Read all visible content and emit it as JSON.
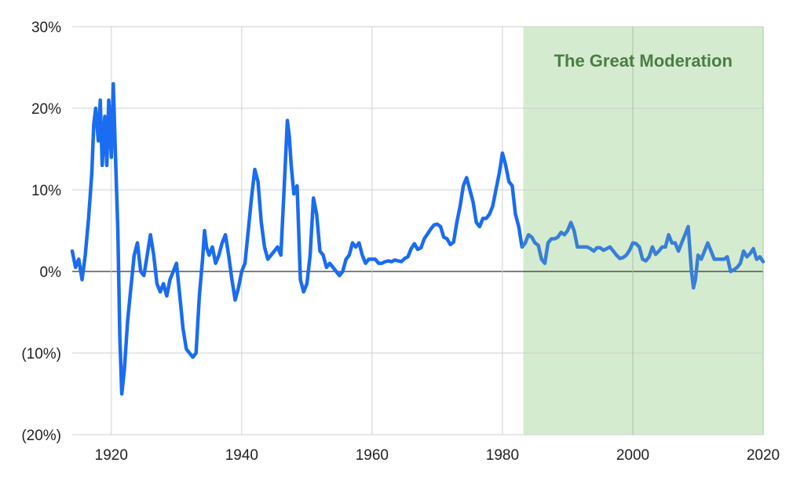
{
  "chart_data": {
    "type": "line",
    "title": "",
    "xlabel": "",
    "ylabel": "",
    "xlim": [
      1914,
      2020
    ],
    "ylim": [
      -20,
      30
    ],
    "y_ticks": [
      {
        "value": 30,
        "label": "30%"
      },
      {
        "value": 20,
        "label": "20%"
      },
      {
        "value": 10,
        "label": "10%"
      },
      {
        "value": 0,
        "label": "0%"
      },
      {
        "value": -10,
        "label": "(10%)"
      },
      {
        "value": -20,
        "label": "(20%)"
      }
    ],
    "x_ticks": [
      {
        "value": 1920,
        "label": "1920"
      },
      {
        "value": 1940,
        "label": "1940"
      },
      {
        "value": 1960,
        "label": "1960"
      },
      {
        "value": 1980,
        "label": "1980"
      },
      {
        "value": 2000,
        "label": "2000"
      },
      {
        "value": 2020,
        "label": "2020"
      }
    ],
    "grid": true,
    "shaded_region": {
      "label": "The Great Moderation",
      "x_start": 1983.2,
      "x_end": 2020
    },
    "series": [
      {
        "color": "#1a6cf0",
        "color_in_region": "#3a7fd6",
        "points": [
          [
            1914.0,
            2.5
          ],
          [
            1914.5,
            0.5
          ],
          [
            1915.0,
            1.5
          ],
          [
            1915.5,
            -1.0
          ],
          [
            1916.0,
            2.0
          ],
          [
            1916.5,
            6.5
          ],
          [
            1917.0,
            12.0
          ],
          [
            1917.3,
            18.0
          ],
          [
            1917.6,
            20.0
          ],
          [
            1918.0,
            16.0
          ],
          [
            1918.3,
            21.0
          ],
          [
            1918.6,
            13.0
          ],
          [
            1919.0,
            19.0
          ],
          [
            1919.3,
            13.0
          ],
          [
            1919.6,
            21.0
          ],
          [
            1920.0,
            14.0
          ],
          [
            1920.3,
            23.0
          ],
          [
            1920.6,
            15.0
          ],
          [
            1921.0,
            5.0
          ],
          [
            1921.3,
            -8.0
          ],
          [
            1921.6,
            -15.0
          ],
          [
            1922.0,
            -12.0
          ],
          [
            1922.5,
            -6.0
          ],
          [
            1923.0,
            -2.0
          ],
          [
            1923.5,
            2.0
          ],
          [
            1924.0,
            3.5
          ],
          [
            1924.5,
            0.0
          ],
          [
            1925.0,
            -0.5
          ],
          [
            1925.5,
            2.0
          ],
          [
            1926.0,
            4.5
          ],
          [
            1926.5,
            2.0
          ],
          [
            1927.0,
            -1.5
          ],
          [
            1927.5,
            -2.5
          ],
          [
            1928.0,
            -1.5
          ],
          [
            1928.5,
            -3.0
          ],
          [
            1929.0,
            -1.0
          ],
          [
            1929.5,
            0.0
          ],
          [
            1930.0,
            1.0
          ],
          [
            1930.5,
            -3.0
          ],
          [
            1931.0,
            -7.0
          ],
          [
            1931.5,
            -9.5
          ],
          [
            1932.0,
            -10.0
          ],
          [
            1932.5,
            -10.5
          ],
          [
            1933.0,
            -10.0
          ],
          [
            1933.5,
            -3.0
          ],
          [
            1934.0,
            1.5
          ],
          [
            1934.3,
            5.0
          ],
          [
            1934.6,
            3.0
          ],
          [
            1935.0,
            2.0
          ],
          [
            1935.5,
            3.0
          ],
          [
            1936.0,
            1.0
          ],
          [
            1936.5,
            2.0
          ],
          [
            1937.0,
            3.5
          ],
          [
            1937.5,
            4.5
          ],
          [
            1938.0,
            2.0
          ],
          [
            1938.5,
            -1.0
          ],
          [
            1939.0,
            -3.5
          ],
          [
            1939.5,
            -2.0
          ],
          [
            1940.0,
            0.0
          ],
          [
            1940.5,
            1.0
          ],
          [
            1941.0,
            5.0
          ],
          [
            1941.5,
            9.0
          ],
          [
            1942.0,
            12.5
          ],
          [
            1942.5,
            11.0
          ],
          [
            1943.0,
            6.0
          ],
          [
            1943.5,
            3.0
          ],
          [
            1944.0,
            1.5
          ],
          [
            1944.5,
            2.0
          ],
          [
            1945.0,
            2.5
          ],
          [
            1945.5,
            3.0
          ],
          [
            1946.0,
            2.0
          ],
          [
            1946.5,
            10.0
          ],
          [
            1947.0,
            18.5
          ],
          [
            1947.3,
            16.5
          ],
          [
            1947.6,
            13.0
          ],
          [
            1948.0,
            9.5
          ],
          [
            1948.5,
            10.5
          ],
          [
            1949.0,
            -1.0
          ],
          [
            1949.5,
            -2.5
          ],
          [
            1950.0,
            -1.5
          ],
          [
            1950.5,
            2.0
          ],
          [
            1951.0,
            9.0
          ],
          [
            1951.5,
            7.0
          ],
          [
            1952.0,
            2.5
          ],
          [
            1952.5,
            2.0
          ],
          [
            1953.0,
            0.5
          ],
          [
            1953.5,
            1.0
          ],
          [
            1954.0,
            0.5
          ],
          [
            1954.5,
            0.0
          ],
          [
            1955.0,
            -0.5
          ],
          [
            1955.5,
            0.0
          ],
          [
            1956.0,
            1.5
          ],
          [
            1956.5,
            2.0
          ],
          [
            1957.0,
            3.5
          ],
          [
            1957.5,
            3.0
          ],
          [
            1958.0,
            3.5
          ],
          [
            1958.5,
            2.0
          ],
          [
            1959.0,
            1.0
          ],
          [
            1959.5,
            1.5
          ],
          [
            1960.0,
            1.5
          ],
          [
            1960.5,
            1.5
          ],
          [
            1961.0,
            1.0
          ],
          [
            1961.5,
            1.0
          ],
          [
            1962.0,
            1.2
          ],
          [
            1962.5,
            1.3
          ],
          [
            1963.0,
            1.2
          ],
          [
            1963.5,
            1.4
          ],
          [
            1964.0,
            1.3
          ],
          [
            1964.5,
            1.2
          ],
          [
            1965.0,
            1.6
          ],
          [
            1965.5,
            1.8
          ],
          [
            1966.0,
            2.8
          ],
          [
            1966.5,
            3.4
          ],
          [
            1967.0,
            2.7
          ],
          [
            1967.5,
            2.9
          ],
          [
            1968.0,
            4.0
          ],
          [
            1968.5,
            4.6
          ],
          [
            1969.0,
            5.2
          ],
          [
            1969.5,
            5.7
          ],
          [
            1970.0,
            5.8
          ],
          [
            1970.5,
            5.5
          ],
          [
            1971.0,
            4.2
          ],
          [
            1971.5,
            4.0
          ],
          [
            1972.0,
            3.3
          ],
          [
            1972.5,
            3.6
          ],
          [
            1973.0,
            6.0
          ],
          [
            1973.5,
            8.0
          ],
          [
            1974.0,
            10.5
          ],
          [
            1974.5,
            11.5
          ],
          [
            1975.0,
            10.0
          ],
          [
            1975.5,
            8.5
          ],
          [
            1976.0,
            6.0
          ],
          [
            1976.5,
            5.5
          ],
          [
            1977.0,
            6.5
          ],
          [
            1977.5,
            6.5
          ],
          [
            1978.0,
            7.0
          ],
          [
            1978.5,
            8.0
          ],
          [
            1979.0,
            10.0
          ],
          [
            1979.5,
            12.0
          ],
          [
            1980.0,
            14.5
          ],
          [
            1980.5,
            13.0
          ],
          [
            1981.0,
            11.0
          ],
          [
            1981.5,
            10.5
          ],
          [
            1982.0,
            7.0
          ],
          [
            1982.5,
            5.5
          ],
          [
            1983.0,
            3.0
          ],
          [
            1983.5,
            3.5
          ],
          [
            1984.0,
            4.5
          ],
          [
            1984.5,
            4.2
          ],
          [
            1985.0,
            3.5
          ],
          [
            1985.5,
            3.2
          ],
          [
            1986.0,
            1.5
          ],
          [
            1986.5,
            1.0
          ],
          [
            1987.0,
            3.5
          ],
          [
            1987.5,
            4.0
          ],
          [
            1988.0,
            4.0
          ],
          [
            1988.5,
            4.2
          ],
          [
            1989.0,
            4.8
          ],
          [
            1989.5,
            4.5
          ],
          [
            1990.0,
            5.0
          ],
          [
            1990.5,
            6.0
          ],
          [
            1991.0,
            5.0
          ],
          [
            1991.5,
            3.0
          ],
          [
            1992.0,
            3.0
          ],
          [
            1992.5,
            3.0
          ],
          [
            1993.0,
            3.0
          ],
          [
            1993.5,
            2.8
          ],
          [
            1994.0,
            2.5
          ],
          [
            1994.5,
            2.9
          ],
          [
            1995.0,
            2.9
          ],
          [
            1995.5,
            2.6
          ],
          [
            1996.0,
            2.8
          ],
          [
            1996.5,
            3.0
          ],
          [
            1997.0,
            2.5
          ],
          [
            1997.5,
            2.0
          ],
          [
            1998.0,
            1.6
          ],
          [
            1998.5,
            1.7
          ],
          [
            1999.0,
            2.0
          ],
          [
            1999.5,
            2.6
          ],
          [
            2000.0,
            3.5
          ],
          [
            2000.5,
            3.4
          ],
          [
            2001.0,
            3.0
          ],
          [
            2001.5,
            1.5
          ],
          [
            2002.0,
            1.3
          ],
          [
            2002.5,
            1.8
          ],
          [
            2003.0,
            3.0
          ],
          [
            2003.5,
            2.1
          ],
          [
            2004.0,
            2.5
          ],
          [
            2004.5,
            3.0
          ],
          [
            2005.0,
            3.0
          ],
          [
            2005.5,
            4.5
          ],
          [
            2006.0,
            3.5
          ],
          [
            2006.5,
            3.5
          ],
          [
            2007.0,
            2.5
          ],
          [
            2007.5,
            3.5
          ],
          [
            2008.0,
            4.5
          ],
          [
            2008.5,
            5.5
          ],
          [
            2009.0,
            0.0
          ],
          [
            2009.3,
            -2.0
          ],
          [
            2009.6,
            -1.0
          ],
          [
            2010.0,
            2.0
          ],
          [
            2010.5,
            1.5
          ],
          [
            2011.0,
            2.5
          ],
          [
            2011.5,
            3.5
          ],
          [
            2012.0,
            2.5
          ],
          [
            2012.5,
            1.5
          ],
          [
            2013.0,
            1.5
          ],
          [
            2013.5,
            1.5
          ],
          [
            2014.0,
            1.5
          ],
          [
            2014.5,
            1.8
          ],
          [
            2015.0,
            0.0
          ],
          [
            2015.5,
            0.2
          ],
          [
            2016.0,
            0.5
          ],
          [
            2016.5,
            1.0
          ],
          [
            2017.0,
            2.5
          ],
          [
            2017.5,
            1.8
          ],
          [
            2018.0,
            2.2
          ],
          [
            2018.5,
            2.8
          ],
          [
            2019.0,
            1.5
          ],
          [
            2019.5,
            1.8
          ],
          [
            2020.0,
            1.2
          ]
        ]
      }
    ]
  }
}
